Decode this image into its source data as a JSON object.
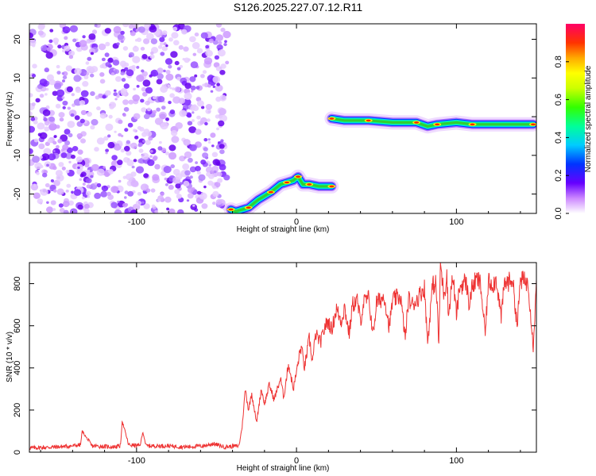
{
  "title": "S126.2025.227.07.12.R11",
  "chart_data": [
    {
      "type": "heatmap",
      "xlabel": "Height of straight line (km)",
      "ylabel": "Frequency (Hz)",
      "xlim": [
        -167,
        150
      ],
      "ylim": [
        -25,
        24
      ],
      "xticks": [
        -100,
        0,
        100
      ],
      "yticks": [
        -20,
        -10,
        0,
        10,
        20
      ],
      "noise_region_x": [
        -167,
        -43
      ],
      "ridges": [
        {
          "name": "lower branch",
          "points": [
            [
              -41,
              -24
            ],
            [
              -38,
              -24.5
            ],
            [
              -30,
              -23.5
            ],
            [
              -24,
              -21.5
            ],
            [
              -16,
              -19.5
            ],
            [
              -10,
              -17.5
            ],
            [
              -6,
              -17
            ],
            [
              -2,
              -16.5
            ],
            [
              1,
              -15.5
            ],
            [
              4,
              -17.5
            ],
            [
              8,
              -17.5
            ],
            [
              14,
              -18
            ],
            [
              22,
              -18
            ]
          ]
        },
        {
          "name": "upper branch",
          "points": [
            [
              22,
              -0.5
            ],
            [
              30,
              -1
            ],
            [
              45,
              -1
            ],
            [
              60,
              -1.5
            ],
            [
              75,
              -1.5
            ],
            [
              82,
              -2.5
            ],
            [
              88,
              -2
            ],
            [
              100,
              -1.5
            ],
            [
              110,
              -2
            ],
            [
              130,
              -2
            ],
            [
              148,
              -2
            ]
          ]
        }
      ],
      "colorbar": {
        "label": "Normalized spectral amplitude",
        "ticks": [
          0.0,
          0.2,
          0.4,
          0.6,
          0.8
        ],
        "range": [
          0,
          1
        ]
      }
    },
    {
      "type": "line",
      "xlabel": "Height of straight line (km)",
      "ylabel": "SNR (10 * v/v)",
      "xlim": [
        -167,
        150
      ],
      "ylim": [
        0,
        900
      ],
      "xticks": [
        -100,
        0,
        100
      ],
      "yticks": [
        0,
        200,
        400,
        600,
        800
      ],
      "series": [
        {
          "name": "SNR",
          "color": "#ee3333",
          "x": [
            -167,
            -150,
            -140,
            -135,
            -134,
            -128,
            -115,
            -110,
            -109,
            -105,
            -98,
            -96,
            -94,
            -80,
            -70,
            -58,
            -52,
            -45,
            -36,
            -34,
            -32,
            -30,
            -28,
            -25,
            -22,
            -20,
            -17,
            -14,
            -10,
            -8,
            -5,
            -2,
            0,
            2,
            3,
            5,
            8,
            10,
            12,
            15,
            18,
            20,
            22,
            25,
            28,
            30,
            33,
            35,
            38,
            40,
            42,
            45,
            48,
            50,
            52,
            55,
            58,
            60,
            62,
            65,
            68,
            70,
            72,
            75,
            78,
            80,
            82,
            85,
            87,
            88,
            89,
            90,
            91,
            92,
            93,
            94,
            95,
            97,
            98,
            100,
            102,
            104,
            106,
            108,
            110,
            113,
            115,
            118,
            120,
            123,
            125,
            128,
            130,
            133,
            135,
            138,
            140,
            143,
            145,
            148,
            150
          ],
          "values": [
            20,
            25,
            30,
            35,
            100,
            30,
            25,
            30,
            150,
            35,
            30,
            95,
            30,
            30,
            25,
            30,
            40,
            25,
            30,
            120,
            300,
            200,
            280,
            140,
            300,
            230,
            320,
            250,
            350,
            260,
            420,
            300,
            380,
            470,
            500,
            400,
            540,
            430,
            560,
            520,
            600,
            620,
            580,
            680,
            620,
            690,
            560,
            700,
            720,
            620,
            710,
            730,
            560,
            710,
            720,
            740,
            590,
            720,
            730,
            740,
            540,
            730,
            700,
            720,
            760,
            780,
            520,
            790,
            800,
            700,
            500,
            900,
            820,
            760,
            780,
            850,
            640,
            800,
            820,
            650,
            780,
            800,
            810,
            700,
            790,
            820,
            800,
            560,
            810,
            800,
            820,
            640,
            800,
            810,
            830,
            600,
            820,
            810,
            800,
            500,
            820
          ]
        }
      ]
    }
  ]
}
